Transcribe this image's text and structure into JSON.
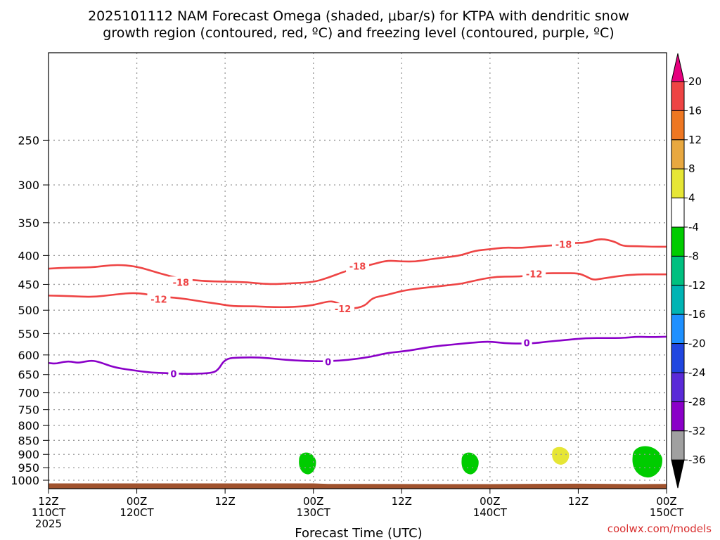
{
  "title_line1": "2025101112 NAM Forecast Omega (shaded, μbar/s) for KTPA with dendritic snow",
  "title_line2": "growth region (contoured, red, ºC) and freezing level (contoured, purple, ºC)",
  "credit": "coolwx.com/models",
  "colors": {
    "dgz_red": "#ee4444",
    "freezing_purple": "#8a00c8",
    "terrain_brown": "#a0522d",
    "credit_red": "#d93030",
    "grid": "#999999"
  },
  "chart_data": {
    "type": "time-height cross-section",
    "xlabel": "Forecast Time (UTC)",
    "x_hours_range": [
      0,
      84
    ],
    "x_ticks": [
      {
        "hour": 0,
        "line1": "12Z",
        "line2": "110CT",
        "line3": "2025"
      },
      {
        "hour": 12,
        "line1": "00Z",
        "line2": "120CT",
        "line3": ""
      },
      {
        "hour": 24,
        "line1": "12Z",
        "line2": "",
        "line3": ""
      },
      {
        "hour": 36,
        "line1": "00Z",
        "line2": "130CT",
        "line3": ""
      },
      {
        "hour": 48,
        "line1": "12Z",
        "line2": "",
        "line3": ""
      },
      {
        "hour": 60,
        "line1": "00Z",
        "line2": "140CT",
        "line3": ""
      },
      {
        "hour": 72,
        "line1": "12Z",
        "line2": "",
        "line3": ""
      },
      {
        "hour": 84,
        "line1": "00Z",
        "line2": "150CT",
        "line3": ""
      }
    ],
    "y_unit": "hPa",
    "y_range": [
      1035,
      175
    ],
    "y_ticks": [
      250,
      300,
      350,
      400,
      450,
      500,
      550,
      600,
      650,
      700,
      750,
      800,
      850,
      900,
      950,
      1000
    ],
    "surface_pressure_hPa": [
      [
        0,
        1013
      ],
      [
        36,
        1013
      ],
      [
        38,
        1015
      ],
      [
        60,
        1016
      ],
      [
        72,
        1014
      ],
      [
        80,
        1016
      ],
      [
        84,
        1015
      ]
    ],
    "contours": [
      {
        "name": "dgz_minus18",
        "level": -18,
        "color_key": "dgz_red",
        "points": [
          [
            0,
            422
          ],
          [
            3,
            420
          ],
          [
            6,
            420
          ],
          [
            9,
            415
          ],
          [
            12,
            418
          ],
          [
            15,
            430
          ],
          [
            18,
            440
          ],
          [
            21,
            444
          ],
          [
            24,
            445
          ],
          [
            27,
            446
          ],
          [
            30,
            450
          ],
          [
            33,
            448
          ],
          [
            36,
            446
          ],
          [
            38,
            438
          ],
          [
            40,
            428
          ],
          [
            42,
            420
          ],
          [
            44,
            415
          ],
          [
            46,
            408
          ],
          [
            48,
            410
          ],
          [
            50,
            410
          ],
          [
            52,
            406
          ],
          [
            54,
            403
          ],
          [
            56,
            400
          ],
          [
            58,
            392
          ],
          [
            60,
            390
          ],
          [
            62,
            387
          ],
          [
            64,
            388
          ],
          [
            66,
            386
          ],
          [
            68,
            384
          ],
          [
            70,
            383
          ],
          [
            71,
            380
          ],
          [
            73,
            380
          ],
          [
            75,
            373
          ],
          [
            77,
            378
          ],
          [
            78,
            385
          ],
          [
            80,
            385
          ],
          [
            82,
            386
          ],
          [
            84,
            386
          ]
        ],
        "labels": [
          {
            "x": 18,
            "p": 446,
            "text": "-18"
          },
          {
            "x": 42,
            "p": 418,
            "text": "-18"
          },
          {
            "x": 70,
            "p": 382,
            "text": "-18"
          }
        ]
      },
      {
        "name": "dgz_minus12",
        "level": -12,
        "color_key": "dgz_red",
        "points": [
          [
            0,
            471
          ],
          [
            3,
            472
          ],
          [
            6,
            474
          ],
          [
            9,
            469
          ],
          [
            12,
            465
          ],
          [
            15,
            473
          ],
          [
            18,
            476
          ],
          [
            21,
            483
          ],
          [
            23,
            487
          ],
          [
            25,
            492
          ],
          [
            28,
            492
          ],
          [
            31,
            494
          ],
          [
            34,
            493
          ],
          [
            36,
            490
          ],
          [
            38,
            482
          ],
          [
            39,
            483
          ],
          [
            41,
            498
          ],
          [
            43,
            492
          ],
          [
            44,
            475
          ],
          [
            46,
            470
          ],
          [
            48,
            462
          ],
          [
            50,
            458
          ],
          [
            52,
            455
          ],
          [
            54,
            452
          ],
          [
            56,
            449
          ],
          [
            57,
            446
          ],
          [
            59,
            440
          ],
          [
            61,
            436
          ],
          [
            63,
            436
          ],
          [
            65,
            435
          ],
          [
            67,
            430
          ],
          [
            70,
            430
          ],
          [
            72,
            430
          ],
          [
            73,
            435
          ],
          [
            74,
            442
          ],
          [
            75,
            440
          ],
          [
            76,
            438
          ],
          [
            78,
            434
          ],
          [
            80,
            432
          ],
          [
            82,
            432
          ],
          [
            84,
            432
          ]
        ],
        "labels": [
          {
            "x": 15,
            "p": 478,
            "text": "-12"
          },
          {
            "x": 40,
            "p": 497,
            "text": "-12"
          },
          {
            "x": 66,
            "p": 431,
            "text": "-12"
          }
        ]
      },
      {
        "name": "freezing_level_0",
        "level": 0,
        "color_key": "freezing_purple",
        "points": [
          [
            0,
            620
          ],
          [
            1,
            622
          ],
          [
            2,
            617
          ],
          [
            3,
            616
          ],
          [
            4,
            620
          ],
          [
            5,
            616
          ],
          [
            6,
            614
          ],
          [
            7,
            618
          ],
          [
            9,
            632
          ],
          [
            12,
            640
          ],
          [
            14,
            645
          ],
          [
            16,
            646
          ],
          [
            18,
            648
          ],
          [
            20,
            648
          ],
          [
            22,
            646
          ],
          [
            23,
            640
          ],
          [
            24,
            609
          ],
          [
            26,
            606
          ],
          [
            29,
            606
          ],
          [
            32,
            612
          ],
          [
            35,
            615
          ],
          [
            38,
            616
          ],
          [
            41,
            612
          ],
          [
            44,
            604
          ],
          [
            46,
            595
          ],
          [
            49,
            590
          ],
          [
            52,
            580
          ],
          [
            55,
            575
          ],
          [
            58,
            570
          ],
          [
            60,
            568
          ],
          [
            62,
            572
          ],
          [
            64,
            573
          ],
          [
            66,
            572
          ],
          [
            68,
            568
          ],
          [
            70,
            565
          ],
          [
            73,
            560
          ],
          [
            76,
            560
          ],
          [
            78,
            560
          ],
          [
            80,
            557
          ],
          [
            82,
            558
          ],
          [
            84,
            557
          ]
        ],
        "labels": [
          {
            "x": 17,
            "p": 648,
            "text": "0"
          },
          {
            "x": 38,
            "p": 617,
            "text": "0"
          },
          {
            "x": 65,
            "p": 571,
            "text": "0"
          }
        ]
      }
    ],
    "shaded_blobs": [
      {
        "x": 35.2,
        "p": 932,
        "value_range": "-8 to -4",
        "color": "#00cc00"
      },
      {
        "x": 57.3,
        "p": 932,
        "value_range": "-8 to -4",
        "color": "#00cc00"
      },
      {
        "x": 69.6,
        "p": 904,
        "value_range": "4 to 8",
        "color": "#e6e635"
      },
      {
        "x": 81.4,
        "p": 925,
        "value_range": "-8 to -4",
        "color": "#00cc00"
      }
    ],
    "colorbar": {
      "segments": [
        {
          "color": "#e6007e",
          "triangle": "top"
        },
        {
          "color": "#ee4444"
        },
        {
          "color": "#ee7722"
        },
        {
          "color": "#e8a840"
        },
        {
          "color": "#e6e635"
        },
        {
          "color": "#ffffff"
        },
        {
          "color": "#00cc00"
        },
        {
          "color": "#00c080"
        },
        {
          "color": "#00b4b4"
        },
        {
          "color": "#1e90ff"
        },
        {
          "color": "#2046e0"
        },
        {
          "color": "#5a2ad8"
        },
        {
          "color": "#8a00c8"
        },
        {
          "color": "#a0a0a0"
        },
        {
          "color": "#000000",
          "triangle": "bottom"
        }
      ],
      "labels": [
        "20",
        "16",
        "12",
        "8",
        "4",
        "-4",
        "-8",
        "-12",
        "-16",
        "-20",
        "-24",
        "-28",
        "-32",
        "-36"
      ]
    }
  }
}
